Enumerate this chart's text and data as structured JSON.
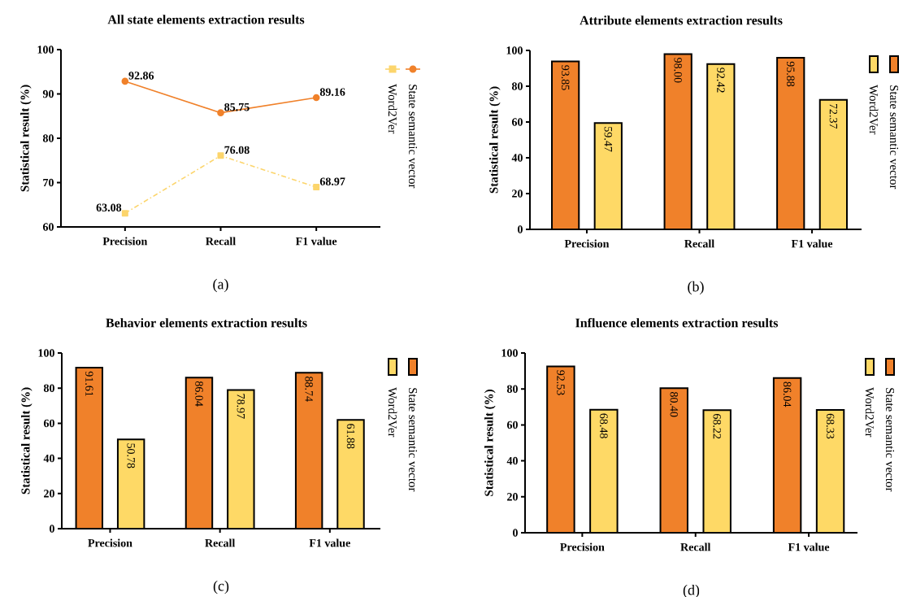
{
  "chart_data": [
    {
      "type": "line",
      "title": "All state elements extraction results",
      "ylabel": "Statistical result (%)",
      "annotations": [
        "(a)"
      ],
      "categories": [
        "Precision",
        "Recall",
        "F1 value"
      ],
      "ylim": [
        60,
        100
      ],
      "yticks": [
        60,
        70,
        80,
        90,
        100
      ],
      "legend": "right",
      "data_labels": true,
      "series": [
        {
          "name": "State semantic vector",
          "color": "#f0812a",
          "values": [
            92.86,
            85.75,
            89.16
          ],
          "marker": "circle",
          "line_style": "solid"
        },
        {
          "name": "Word2Ver",
          "color": "#fcd56c",
          "values": [
            63.08,
            76.08,
            68.97
          ],
          "marker": "square",
          "line_style": "dashed"
        }
      ]
    },
    {
      "type": "bar",
      "title": "Attribute elements extraction results",
      "ylabel": "Statistical result (%)",
      "annotations": [
        "(b)"
      ],
      "categories": [
        "Precision",
        "Recall",
        "F1 value"
      ],
      "ylim": [
        0,
        100
      ],
      "yticks": [
        0,
        20,
        40,
        60,
        80,
        100
      ],
      "legend": "right",
      "series": [
        {
          "name": "State semantic vector",
          "color": "#f0812a",
          "values": [
            93.85,
            98.0,
            95.88
          ],
          "value_labels": [
            "93.85",
            "98.00",
            "95.88"
          ]
        },
        {
          "name": "Word2Ver",
          "color": "#fed966",
          "values": [
            59.47,
            92.42,
            72.37
          ],
          "value_labels": [
            "59.47",
            "92.42",
            "72.37"
          ]
        }
      ]
    },
    {
      "type": "bar",
      "title": "Behavior elements extraction results",
      "ylabel": "Statistical result (%)",
      "annotations": [
        "(c)"
      ],
      "categories": [
        "Precision",
        "Recall",
        "F1 value"
      ],
      "ylim": [
        0,
        100
      ],
      "yticks": [
        0,
        20,
        40,
        60,
        80,
        100
      ],
      "legend": "right",
      "series": [
        {
          "name": "State semantic vector",
          "color": "#f0812a",
          "values": [
            91.61,
            86.04,
            88.74
          ],
          "value_labels": [
            "91.61",
            "86.04",
            "88.74"
          ]
        },
        {
          "name": "Word2Ver",
          "color": "#fed966",
          "values": [
            50.78,
            78.97,
            61.88
          ],
          "value_labels": [
            "50.78",
            "78.97",
            "61.88"
          ]
        }
      ]
    },
    {
      "type": "bar",
      "title": "Influence elements extraction results",
      "ylabel": "Statistical result (%)",
      "annotations": [
        "(d)"
      ],
      "categories": [
        "Precision",
        "Recall",
        "F1 value"
      ],
      "ylim": [
        0,
        100
      ],
      "yticks": [
        0,
        20,
        40,
        60,
        80,
        100
      ],
      "legend": "right",
      "series": [
        {
          "name": "State semantic vector",
          "color": "#f0812a",
          "values": [
            92.53,
            80.4,
            86.04
          ],
          "value_labels": [
            "92.53",
            "80.40",
            "86.04"
          ]
        },
        {
          "name": "Word2Ver",
          "color": "#fed966",
          "values": [
            68.48,
            68.22,
            68.33
          ],
          "value_labels": [
            "68.48",
            "68.22",
            "68.33"
          ]
        }
      ]
    }
  ]
}
